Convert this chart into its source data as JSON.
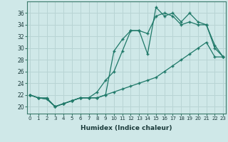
{
  "xlabel": "Humidex (Indice chaleur)",
  "bg_color": "#cfe8e8",
  "grid_color": "#b8d4d4",
  "line_color": "#1e7868",
  "x_ticks": [
    0,
    1,
    2,
    3,
    4,
    5,
    6,
    7,
    8,
    9,
    10,
    11,
    12,
    13,
    14,
    15,
    16,
    17,
    18,
    19,
    20,
    21,
    22,
    23
  ],
  "y_ticks": [
    20,
    22,
    24,
    26,
    28,
    30,
    32,
    34,
    36
  ],
  "xlim": [
    -0.3,
    23.3
  ],
  "ylim": [
    18.8,
    38.0
  ],
  "series1_x": [
    0,
    1,
    2,
    3,
    4,
    5,
    6,
    7,
    8,
    9,
    10,
    11,
    12,
    13,
    14,
    15,
    16,
    17,
    18,
    19,
    20,
    21,
    22,
    23
  ],
  "series1_y": [
    22.0,
    21.5,
    21.5,
    20.0,
    20.5,
    21.0,
    21.5,
    21.5,
    21.5,
    22.0,
    29.5,
    31.5,
    33.0,
    33.0,
    32.5,
    35.5,
    36.0,
    35.5,
    34.0,
    34.5,
    34.0,
    34.0,
    30.0,
    28.5
  ],
  "series2_x": [
    0,
    1,
    2,
    3,
    4,
    5,
    6,
    7,
    8,
    9,
    10,
    11,
    12,
    13,
    14,
    15,
    16,
    17,
    18,
    19,
    20,
    21,
    22,
    23
  ],
  "series2_y": [
    22.0,
    21.5,
    21.3,
    20.0,
    20.5,
    21.0,
    21.5,
    21.5,
    22.5,
    24.5,
    26.0,
    29.5,
    33.0,
    33.0,
    29.0,
    37.0,
    35.5,
    36.0,
    34.5,
    36.0,
    34.5,
    34.0,
    30.5,
    28.5
  ],
  "series3_x": [
    0,
    1,
    2,
    3,
    4,
    5,
    6,
    7,
    8,
    9,
    10,
    11,
    12,
    13,
    14,
    15,
    16,
    17,
    18,
    19,
    20,
    21,
    22,
    23
  ],
  "series3_y": [
    22.0,
    21.5,
    21.3,
    20.0,
    20.5,
    21.0,
    21.5,
    21.5,
    21.5,
    22.0,
    22.5,
    23.0,
    23.5,
    24.0,
    24.5,
    25.0,
    26.0,
    27.0,
    28.0,
    29.0,
    30.0,
    31.0,
    28.5,
    28.5
  ]
}
